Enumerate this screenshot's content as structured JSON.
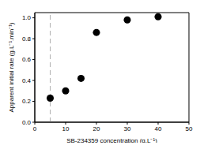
{
  "chart_data": {
    "type": "scatter",
    "x_label": "SB-234359 concentration (g.L⁻¹)",
    "y_label": "Apparent initial rate (g.L⁻¹.min⁻¹)",
    "x": [
      5,
      10,
      15,
      20,
      30,
      40
    ],
    "values": [
      0.23,
      0.3,
      0.42,
      0.86,
      0.98,
      1.01
    ],
    "color": "#000000",
    "marker": "circle",
    "xlim": [
      0,
      50
    ],
    "xticks": [
      0,
      10,
      20,
      30,
      40,
      50
    ],
    "ylim": [
      0,
      1.05
    ],
    "yticks": [
      {
        "value": 0,
        "label": "0.0"
      },
      {
        "value": 0.2,
        "label": "0.2"
      },
      {
        "value": 0.4,
        "label": "0.4"
      },
      {
        "value": 0.6,
        "label": "0.6"
      },
      {
        "value": 0.8,
        "label": "0.8"
      },
      {
        "value": 1.0,
        "label": "1.0"
      }
    ],
    "vline": 5,
    "grid": false
  }
}
